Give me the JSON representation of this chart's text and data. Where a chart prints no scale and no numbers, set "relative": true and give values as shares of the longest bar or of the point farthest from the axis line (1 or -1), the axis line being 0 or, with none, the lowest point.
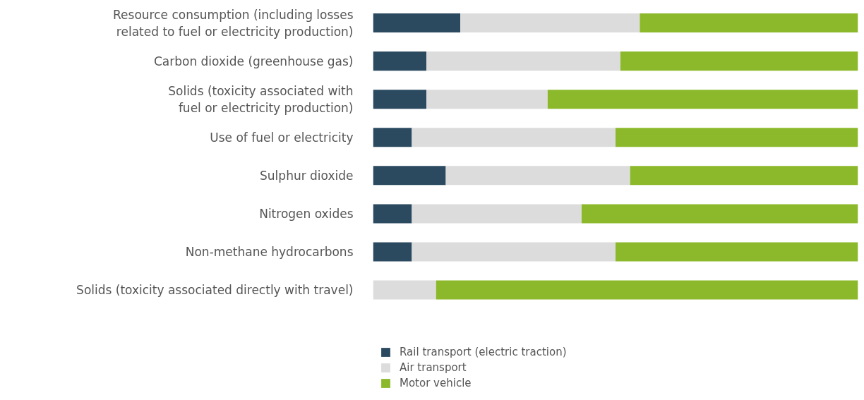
{
  "chart_data": {
    "type": "bar",
    "orientation": "horizontal",
    "stacked": true,
    "relative": true,
    "grid": false,
    "legend": "bottom",
    "categories": [
      "Resource consumption (including losses\nrelated to fuel or electricity production)",
      "Carbon dioxide (greenhouse gas)",
      "Solids (toxicity associated with\nfuel or electricity production)",
      "Use of fuel or electricity",
      "Sulphur dioxide",
      "Nitrogen oxides",
      "Non-methane hydrocarbons",
      "Solids (toxicity associated directly with travel)"
    ],
    "series": [
      {
        "name": "Rail transport (electric traction)",
        "color": "#2b4a60",
        "values": [
          0.18,
          0.11,
          0.11,
          0.08,
          0.15,
          0.08,
          0.08,
          0
        ]
      },
      {
        "name": "Air transport",
        "color": "#dcdcdc",
        "values": [
          0.37,
          0.4,
          0.25,
          0.42,
          0.38,
          0.35,
          0.42,
          0.13
        ]
      },
      {
        "name": "Motor vehicle",
        "color": "#8cb92b",
        "values": [
          0.45,
          0.49,
          0.64,
          0.5,
          0.47,
          0.57,
          0.5,
          0.87
        ]
      }
    ]
  }
}
